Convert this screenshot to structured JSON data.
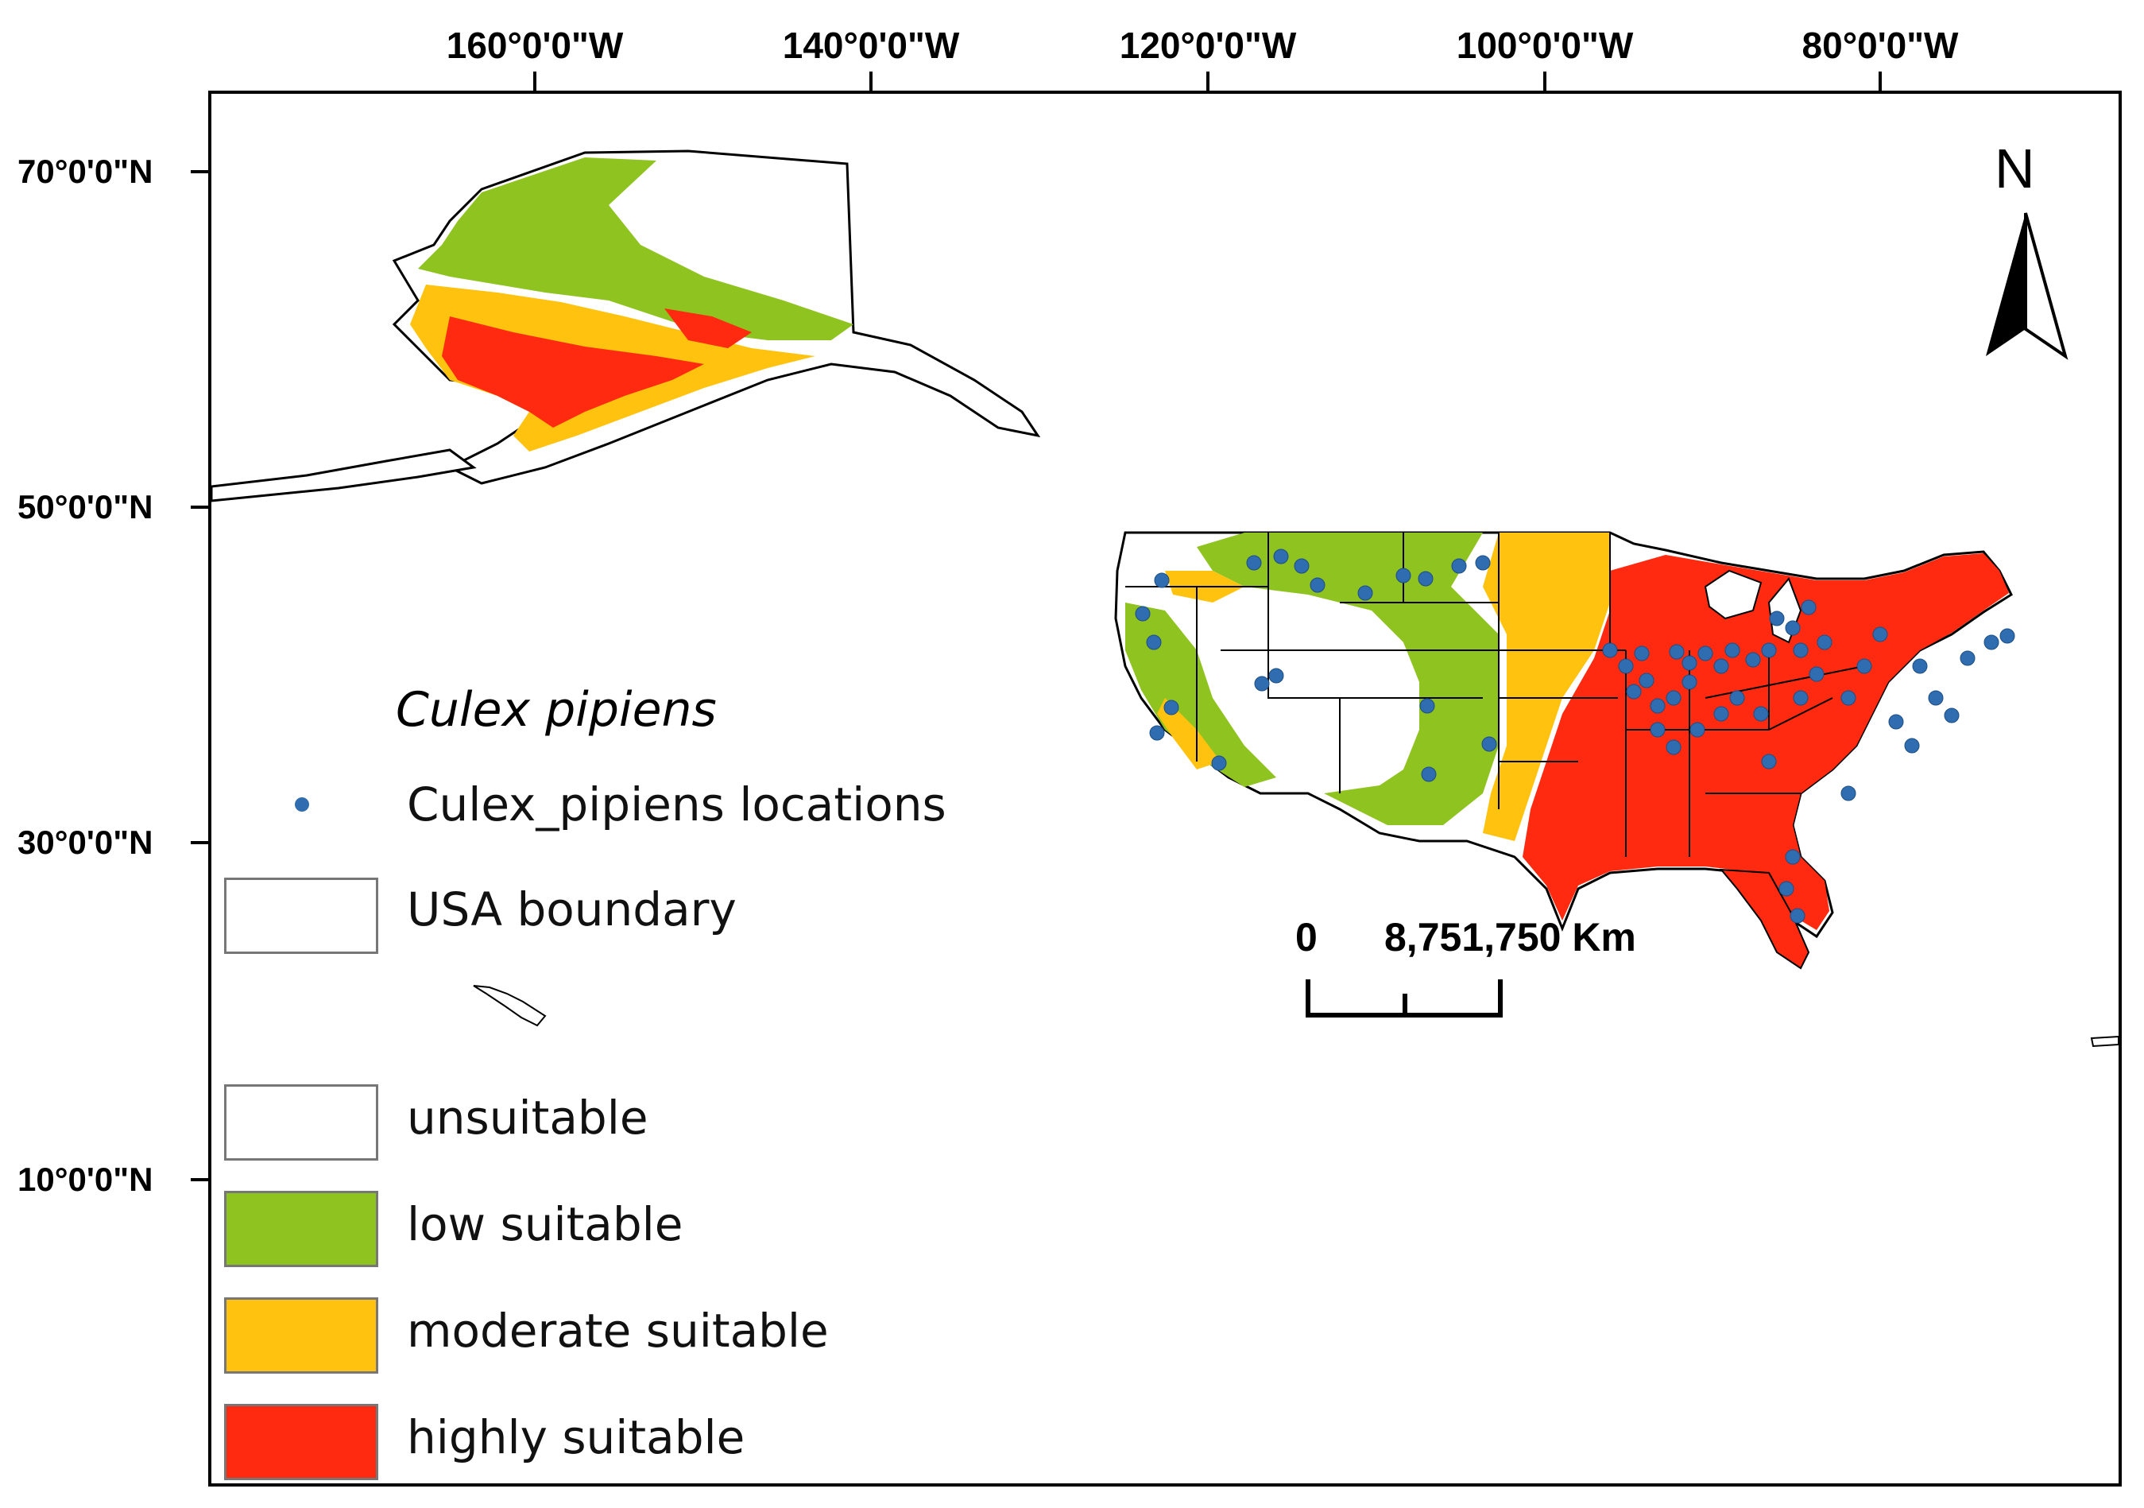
{
  "map": {
    "legend": {
      "species_title": "Culex pipiens",
      "locations_label": "Culex_pipiens locations",
      "boundary_label": "USA boundary",
      "classes": [
        {
          "label": "unsuitable",
          "color": "#ffffff"
        },
        {
          "label": "low suitable",
          "color": "#8fc31f"
        },
        {
          "label": "moderate suitable",
          "color": "#ffc20e"
        },
        {
          "label": "highly suitable",
          "color": "#ff2a10"
        }
      ]
    },
    "longitude_labels": [
      "160°0'0\"W",
      "140°0'0\"W",
      "120°0'0\"W",
      "100°0'0\"W",
      "80°0'0\"W"
    ],
    "latitude_labels": [
      "70°0'0\"N",
      "50°0'0\"N",
      "30°0'0\"N",
      "10°0'0\"N"
    ],
    "scale_bar": {
      "zero_label": "0",
      "distance_label": "8,751,750 Km"
    },
    "north_arrow_label": "N",
    "colors": {
      "locations": "#2f6db0",
      "boundary": "#000000",
      "unsuitable": "#ffffff",
      "low": "#8fc31f",
      "moderate": "#ffc20e",
      "high": "#ff2a10"
    }
  }
}
